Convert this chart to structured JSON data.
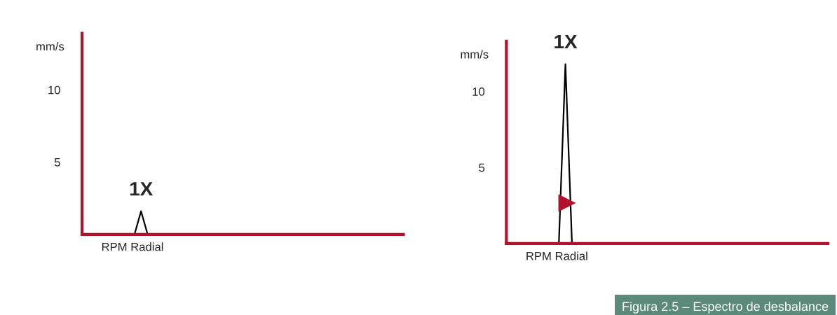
{
  "chart_data": [
    {
      "type": "line",
      "xlabel": "RPM Radial",
      "ylabel": "mm/s",
      "categories": [
        null,
        null,
        null,
        null,
        null,
        null,
        null,
        null,
        null,
        null,
        null,
        null,
        null,
        null,
        null,
        null,
        null,
        null,
        null,
        null,
        null,
        null,
        null,
        null,
        null,
        null,
        null,
        null,
        null,
        null,
        null,
        null,
        null,
        null,
        null,
        null,
        null,
        null,
        null,
        null,
        null,
        null,
        null,
        null,
        null,
        null,
        null,
        null,
        null,
        null
      ],
      "series": [
        {
          "color": "#000000",
          "values": [
            null,
            null,
            null,
            null,
            null,
            null,
            null,
            null,
            0,
            1.6,
            0,
            null,
            null,
            null,
            null,
            null,
            null,
            null,
            null,
            null,
            null,
            null,
            null,
            null,
            null,
            null,
            null,
            null,
            null,
            null,
            null,
            null,
            null,
            null,
            null,
            null,
            null,
            null,
            null,
            null,
            null,
            null,
            null,
            null,
            null,
            null,
            null,
            null,
            null,
            null
          ]
        }
      ],
      "ylim": [
        0,
        13.9
      ],
      "yticks": [
        5,
        10
      ],
      "grid": false,
      "annotations": [
        "1X"
      ]
    },
    {
      "type": "line",
      "xlabel": "RPM Radial",
      "ylabel": "mm/s",
      "categories": [
        null,
        null,
        null,
        null,
        null,
        null,
        null,
        null,
        null,
        null,
        null,
        null,
        null,
        null,
        null,
        null,
        null,
        null,
        null,
        null,
        null,
        null,
        null,
        null,
        null,
        null,
        null,
        null,
        null,
        null,
        null,
        null,
        null,
        null,
        null,
        null,
        null,
        null,
        null,
        null,
        null,
        null,
        null,
        null,
        null,
        null,
        null,
        null,
        null,
        null
      ],
      "series": [
        {
          "color": "#000000",
          "values": [
            null,
            null,
            null,
            null,
            null,
            null,
            null,
            null,
            0,
            11.8,
            0,
            null,
            null,
            null,
            null,
            null,
            null,
            null,
            null,
            null,
            null,
            null,
            null,
            null,
            null,
            null,
            null,
            null,
            null,
            null,
            null,
            null,
            null,
            null,
            null,
            null,
            null,
            null,
            null,
            null,
            null,
            null,
            null,
            null,
            null,
            null,
            null,
            null,
            null,
            null
          ]
        }
      ],
      "ylim": [
        0,
        13.3
      ],
      "yticks": [
        5,
        10
      ],
      "grid": false,
      "annotations": [
        "1X",
        "Figura 2.5 – Espectro de desbalance"
      ]
    }
  ]
}
